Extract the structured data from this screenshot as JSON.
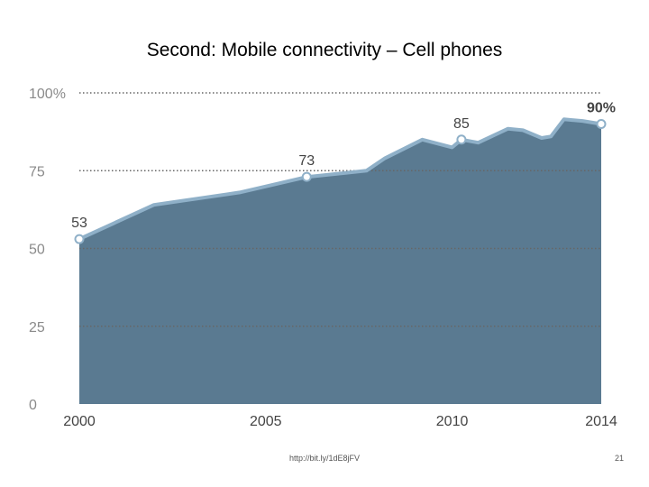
{
  "slide": {
    "title": "Second: Mobile connectivity – Cell phones",
    "footer_url": "http://bit.ly/1dE8jFV",
    "page_number": "21"
  },
  "colors": {
    "area_fill": "#5a7a91",
    "area_line": "#8fb0c8",
    "grid": "#666666",
    "tick_text": "#8a8a8a",
    "label_text": "#444444",
    "marker_fill": "#ffffff",
    "marker_stroke": "#8fb0c8"
  },
  "chart_data": {
    "type": "area",
    "title": "",
    "xlabel": "",
    "ylabel": "",
    "xlim": [
      2000,
      2014
    ],
    "ylim": [
      0,
      100
    ],
    "x_ticks": [
      {
        "value": 2000,
        "label": "2000"
      },
      {
        "value": 2005,
        "label": "2005"
      },
      {
        "value": 2010,
        "label": "2010"
      },
      {
        "value": 2014,
        "label": "2014"
      }
    ],
    "y_ticks": [
      {
        "value": 0,
        "label": "0"
      },
      {
        "value": 25,
        "label": "25"
      },
      {
        "value": 50,
        "label": "50"
      },
      {
        "value": 75,
        "label": "75"
      },
      {
        "value": 100,
        "label": "100%"
      }
    ],
    "grid": "dotted horizontal",
    "series": [
      {
        "x": [
          2000.0,
          2002.0,
          2004.3,
          2006.1,
          2007.7,
          2008.2,
          2009.2,
          2010.0,
          2010.25,
          2010.7,
          2011.5,
          2011.9,
          2012.4,
          2012.65,
          2013.0,
          2013.5,
          2014.0
        ],
        "values": [
          53,
          64,
          68,
          73,
          75,
          79,
          85,
          82.5,
          85,
          84,
          88.5,
          88,
          85.5,
          86,
          91.5,
          91,
          90
        ]
      }
    ],
    "annotations": [
      {
        "x": 2000.0,
        "value": 53,
        "label": "53"
      },
      {
        "x": 2006.1,
        "value": 73,
        "label": "73"
      },
      {
        "x": 2010.25,
        "value": 85,
        "label": "85"
      },
      {
        "x": 2014.0,
        "value": 90,
        "label": "90%"
      }
    ]
  }
}
